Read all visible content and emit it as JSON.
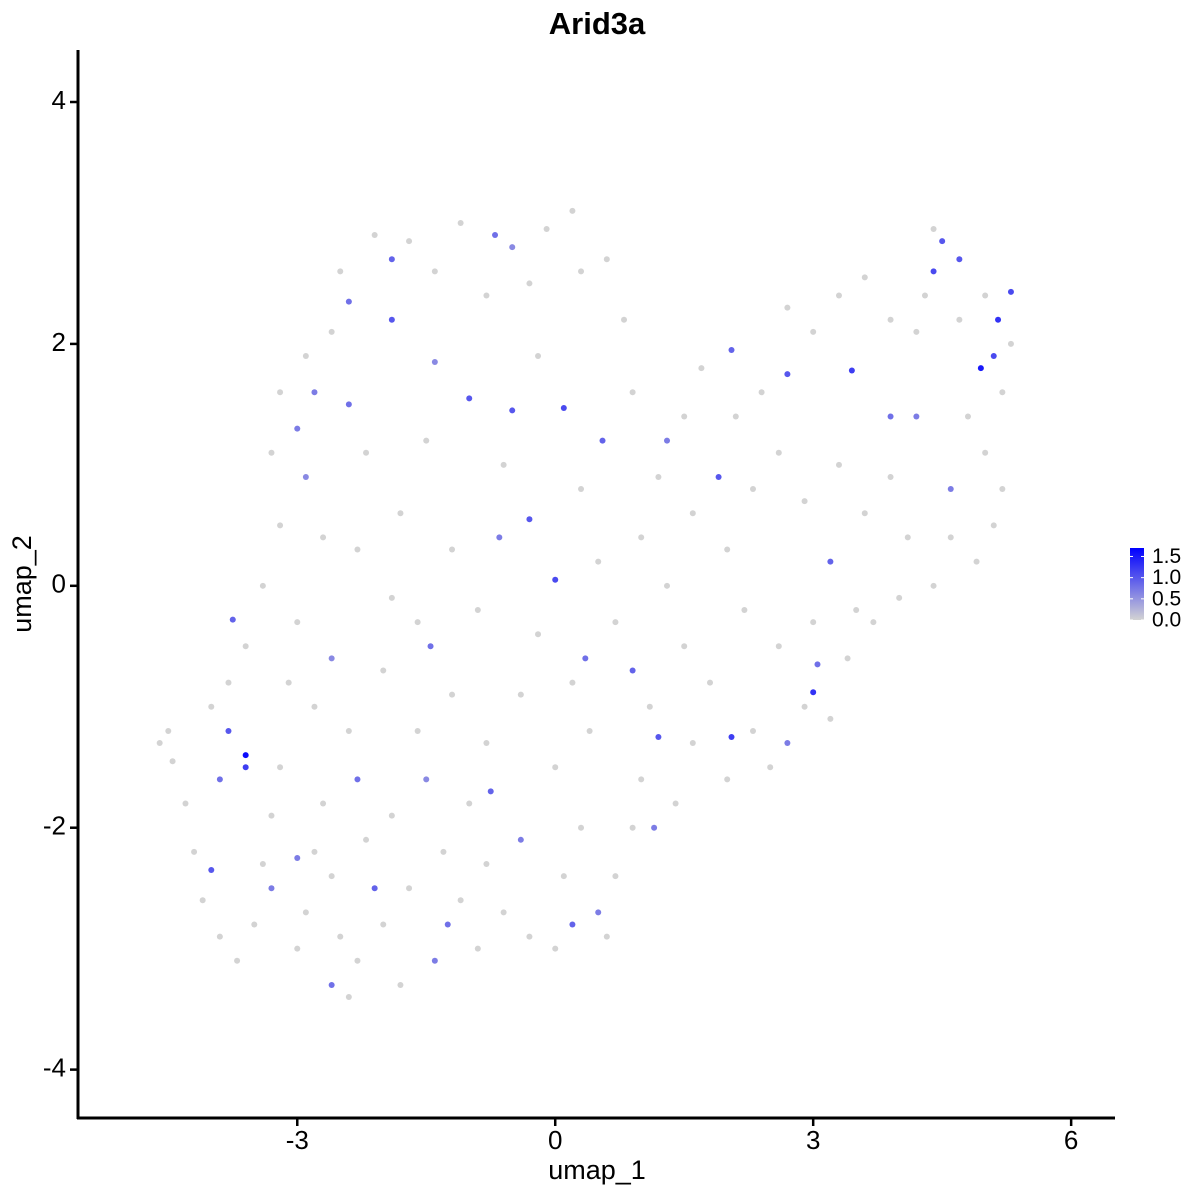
{
  "chart_data": {
    "type": "scatter",
    "title": "Arid3a",
    "xlabel": "umap_1",
    "ylabel": "umap_2",
    "x": [
      -3.6,
      -3.6,
      -3.8,
      -3.9,
      -4.0,
      -3.75,
      -2.1,
      -2.3,
      -2.6,
      -1.4,
      -1.25,
      -1.5,
      -0.75,
      -0.4,
      0.2,
      0.5,
      1.15,
      1.2,
      2.05,
      3.0,
      3.05,
      2.7,
      0.0,
      0.1,
      -0.5,
      -1.0,
      -0.3,
      -2.4,
      -1.9,
      -1.9,
      -2.4,
      -2.8,
      -3.0,
      -2.9,
      -1.4,
      -0.7,
      -0.5,
      4.4,
      4.5,
      4.95,
      5.15,
      5.3,
      5.1,
      4.7,
      3.45,
      2.7,
      2.05,
      0.55,
      1.3,
      1.9,
      4.2,
      4.6,
      3.9,
      3.2,
      0.9,
      0.35,
      -0.65,
      -1.45,
      -2.6,
      -3.3,
      -3.0,
      -4.6,
      -4.5,
      -4.45,
      -4.3,
      -4.2,
      -4.1,
      -3.9,
      -3.7,
      -3.5,
      -3.4,
      -3.3,
      -3.2,
      -3.0,
      -2.9,
      -2.8,
      -2.7,
      -2.5,
      -2.4,
      -2.3,
      -2.2,
      -2.0,
      -1.8,
      -1.9,
      -1.7,
      -1.6,
      -1.3,
      -1.1,
      -0.9,
      -0.8,
      -0.6,
      -0.3,
      0.0,
      0.1,
      0.3,
      0.6,
      0.7,
      0.9,
      1.0,
      1.4,
      1.6,
      2.0,
      2.3,
      2.5,
      2.9,
      3.2,
      3.4,
      3.7,
      4.0,
      4.4,
      4.6,
      4.9,
      5.1,
      5.2,
      5.0,
      4.8,
      5.2,
      5.3,
      5.0,
      4.7,
      4.3,
      4.4,
      4.2,
      3.9,
      3.6,
      3.3,
      3.0,
      2.7,
      2.4,
      2.1,
      1.7,
      1.5,
      1.2,
      0.9,
      0.8,
      0.6,
      0.3,
      0.2,
      -0.1,
      -0.3,
      -0.8,
      -1.1,
      -1.4,
      -1.7,
      -2.1,
      -2.5,
      -2.6,
      -2.9,
      -3.2,
      -3.3,
      -3.2,
      -3.4,
      -3.6,
      -3.8,
      -4.0,
      -3.0,
      -2.7,
      -2.2,
      -1.8,
      -1.5,
      -1.2,
      -0.9,
      -0.6,
      -0.2,
      0.3,
      0.5,
      0.7,
      1.0,
      1.3,
      1.6,
      2.0,
      2.3,
      2.6,
      2.9,
      3.3,
      3.6,
      3.9,
      4.1,
      3.5,
      3.0,
      2.6,
      2.2,
      1.8,
      1.5,
      0.4,
      0.0,
      -0.4,
      -0.8,
      -1.2,
      -1.6,
      -2.0,
      -2.4,
      -2.8,
      -3.1,
      -2.3,
      -1.9,
      -0.2,
      0.2,
      1.1,
      -1.0,
      -2.6
    ],
    "values": [
      -1.4,
      -1.5,
      -1.2,
      -1.6,
      -2.35,
      -0.28,
      -2.5,
      -1.6,
      -3.3,
      -3.1,
      -2.8,
      -1.6,
      -1.7,
      -2.1,
      -2.8,
      -2.7,
      -2.0,
      -1.25,
      -1.25,
      -0.88,
      -0.65,
      -1.3,
      0.05,
      1.47,
      1.45,
      1.55,
      0.55,
      1.5,
      2.7,
      2.2,
      2.35,
      1.6,
      1.3,
      0.9,
      1.85,
      2.9,
      2.8,
      2.6,
      2.85,
      1.8,
      2.2,
      2.43,
      1.9,
      2.7,
      1.78,
      1.75,
      1.95,
      1.2,
      1.2,
      0.9,
      1.4,
      0.8,
      1.4,
      0.2,
      -0.7,
      -0.6,
      0.4,
      -0.5,
      -0.6,
      -2.5,
      -2.25,
      -1.3,
      -1.2,
      -1.45,
      -1.8,
      -2.2,
      -2.6,
      -2.9,
      -3.1,
      -2.8,
      -2.3,
      -1.9,
      -1.5,
      -3.0,
      -2.7,
      -2.2,
      -1.8,
      -2.9,
      -3.4,
      -3.1,
      -2.1,
      -2.8,
      -3.3,
      -1.9,
      -2.5,
      -1.2,
      -2.2,
      -2.6,
      -3.0,
      -2.3,
      -2.7,
      -2.9,
      -3.0,
      -2.4,
      -2.0,
      -2.9,
      -2.4,
      -2.0,
      -1.6,
      -1.8,
      -1.3,
      -1.6,
      -1.2,
      -1.5,
      -1.0,
      -1.1,
      -0.6,
      -0.3,
      -0.1,
      0.0,
      0.4,
      0.2,
      0.5,
      0.8,
      1.1,
      1.4,
      1.6,
      2.0,
      2.4,
      2.2,
      2.4,
      2.95,
      2.1,
      2.2,
      2.55,
      2.4,
      2.1,
      2.3,
      1.6,
      1.4,
      1.8,
      1.4,
      0.9,
      1.6,
      2.2,
      2.7,
      2.6,
      3.1,
      2.95,
      2.5,
      2.4,
      3.0,
      2.6,
      2.85,
      2.9,
      2.6,
      2.1,
      1.9,
      1.6,
      1.1,
      0.5,
      0.0,
      -0.5,
      -0.8,
      -1.0,
      -0.3,
      0.4,
      1.1,
      0.6,
      1.2,
      0.3,
      -0.2,
      1.0,
      1.9,
      0.8,
      0.2,
      -0.3,
      0.4,
      0.0,
      0.6,
      0.3,
      0.8,
      1.1,
      0.7,
      1.0,
      0.6,
      0.9,
      0.4,
      -0.2,
      -0.3,
      -0.5,
      -0.2,
      -0.8,
      -0.5,
      -1.2,
      -1.5,
      -0.9,
      -1.3,
      -0.9,
      -0.3,
      -0.7,
      -1.2,
      -1.0,
      -0.8,
      0.3,
      -0.1,
      -0.4,
      -0.8,
      -1.0,
      -1.8,
      -2.4
    ],
    "expression": [
      1.6,
      1.2,
      1.0,
      0.8,
      1.0,
      0.9,
      0.9,
      0.8,
      0.8,
      0.7,
      0.8,
      0.6,
      0.9,
      0.7,
      0.9,
      0.7,
      0.7,
      1.0,
      1.2,
      1.3,
      0.8,
      0.7,
      1.1,
      1.1,
      1.0,
      1.0,
      1.0,
      0.8,
      0.9,
      1.0,
      0.8,
      0.7,
      0.7,
      0.6,
      0.6,
      0.8,
      0.6,
      1.1,
      1.0,
      1.5,
      1.3,
      1.1,
      1.1,
      1.0,
      1.2,
      1.0,
      0.9,
      0.9,
      0.7,
      1.0,
      0.7,
      0.7,
      0.8,
      0.9,
      0.9,
      0.8,
      0.7,
      0.8,
      0.6,
      0.7,
      0.7,
      0,
      0,
      0,
      0,
      0,
      0,
      0,
      0,
      0,
      0,
      0,
      0,
      0,
      0,
      0,
      0,
      0,
      0,
      0,
      0,
      0,
      0,
      0,
      0,
      0,
      0,
      0,
      0,
      0,
      0,
      0,
      0,
      0,
      0,
      0,
      0,
      0,
      0,
      0,
      0,
      0,
      0,
      0,
      0,
      0,
      0,
      0,
      0,
      0,
      0,
      0,
      0,
      0,
      0,
      0,
      0,
      0,
      0,
      0,
      0,
      0,
      0,
      0,
      0,
      0,
      0,
      0,
      0,
      0,
      0,
      0,
      0,
      0,
      0,
      0,
      0,
      0,
      0,
      0,
      0,
      0,
      0,
      0,
      0,
      0,
      0,
      0,
      0,
      0,
      0,
      0,
      0,
      0,
      0,
      0,
      0,
      0,
      0,
      0,
      0,
      0,
      0,
      0,
      0,
      0,
      0,
      0,
      0,
      0,
      0,
      0,
      0,
      0,
      0,
      0,
      0,
      0,
      0,
      0,
      0,
      0,
      0,
      0,
      0,
      0,
      0,
      0,
      0,
      0,
      0,
      0,
      0,
      0,
      0,
      0,
      0,
      0,
      0,
      0,
      0
    ],
    "color_low": "#d3d3d3",
    "color_high": "#0000ff",
    "color_lim": [
      0,
      1.7
    ],
    "color_ticks": [
      {
        "value": 0,
        "label": "0.0"
      },
      0.5,
      {
        "value": 1,
        "label": "1.0"
      },
      1.5
    ],
    "xlim": [
      -5.55,
      6.51
    ],
    "xticks": [
      -3,
      0,
      3,
      6
    ],
    "ylim": [
      -4.4,
      4.43
    ],
    "yticks": [
      -4,
      -2,
      0,
      2,
      4
    ]
  }
}
